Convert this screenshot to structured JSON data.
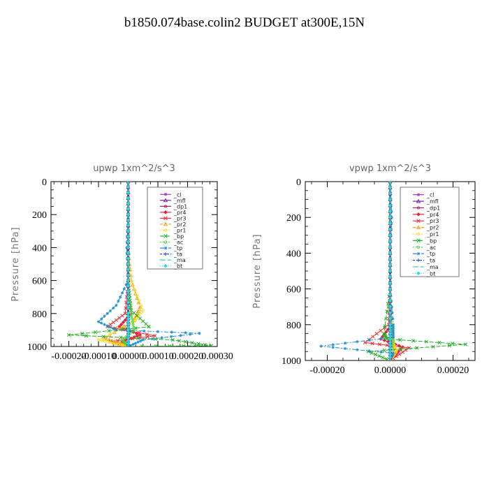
{
  "title": "b1850.074base.colin2  BUDGET at300E,15N",
  "colors": {
    "_cl": "#9a3fbf",
    "_mfl": "#7a1f9f",
    "_dp1": "#b0205a",
    "_pr4": "#e8203a",
    "_pr3": "#f03030",
    "_pr2": "#f0a020",
    "_pr1": "#f5e020",
    "_bp": "#20b020",
    "_ac": "#40e040",
    "_tp": "#2090d0",
    "_ta": "#2040e0",
    "_ma": "#20d0d0",
    "_bt": "#20e0e0"
  },
  "chart_data": [
    {
      "type": "line",
      "title": "upwp  1xm^2/s^3",
      "ylabel": "Pressure [hPa]",
      "xlabel": "",
      "xlim": [
        -0.00026,
        0.0003
      ],
      "ylim": [
        1000,
        0
      ],
      "y_inverted": true,
      "xticks": [
        "-0.00020",
        "-0.00010",
        "0.00000",
        "0.00010",
        "0.00020",
        "0.00030"
      ],
      "xtick_values": [
        -0.0002,
        -0.0001,
        0,
        0.0001,
        0.0002,
        0.0003
      ],
      "yticks": [
        0,
        200,
        400,
        600,
        800,
        1000
      ],
      "legend": [
        "_cl",
        "_mfl",
        "_dp1",
        "_pr4",
        "_pr3",
        "_pr2",
        "_pr1",
        "_bp",
        "_ac",
        "_tp",
        "_ta",
        "_ma",
        "_bt"
      ],
      "legend_position": "top-right",
      "series": [
        {
          "name": "_cl",
          "x": [
            0,
            0,
            0,
            0,
            0,
            0,
            0
          ],
          "y": [
            0,
            200,
            400,
            600,
            800,
            900,
            1000
          ]
        },
        {
          "name": "_mfl",
          "x": [
            0,
            0,
            0,
            0,
            0,
            0,
            0
          ],
          "y": [
            0,
            200,
            400,
            600,
            800,
            900,
            1000
          ]
        },
        {
          "name": "_dp1",
          "x": [
            0,
            0,
            0,
            0,
            0,
            0,
            0
          ],
          "y": [
            0,
            200,
            400,
            600,
            800,
            900,
            1000
          ]
        },
        {
          "name": "_pr4",
          "x": [
            0,
            0,
            0,
            0,
            1e-05,
            -3e-05,
            4e-05,
            -2e-05,
            0
          ],
          "y": [
            0,
            200,
            400,
            600,
            800,
            880,
            930,
            970,
            1000
          ]
        },
        {
          "name": "_pr3",
          "x": [
            0,
            0,
            0,
            0,
            -1e-05,
            -7e-05,
            9e-05,
            -6e-05,
            0
          ],
          "y": [
            0,
            200,
            400,
            600,
            800,
            880,
            935,
            970,
            1000
          ]
        },
        {
          "name": "_pr2",
          "x": [
            0,
            0,
            0,
            1e-05,
            4e-05,
            2e-05,
            -8e-05,
            -3e-05,
            0
          ],
          "y": [
            0,
            200,
            400,
            600,
            760,
            840,
            950,
            980,
            1000
          ]
        },
        {
          "name": "_pr1",
          "x": [
            0,
            0,
            0,
            1e-05,
            5e-05,
            2e-05,
            -0.0001,
            -4e-05,
            0
          ],
          "y": [
            0,
            200,
            400,
            600,
            780,
            850,
            960,
            985,
            1000
          ]
        },
        {
          "name": "_bp",
          "x": [
            0,
            0,
            0,
            0,
            1e-05,
            7e-05,
            -0.0002,
            0.00015,
            0.00028,
            0
          ],
          "y": [
            0,
            200,
            400,
            600,
            780,
            880,
            930,
            960,
            995,
            1000
          ]
        },
        {
          "name": "_ac",
          "x": [
            0,
            0,
            0,
            0,
            1e-05,
            2e-05,
            -2e-05,
            0
          ],
          "y": [
            0,
            200,
            400,
            600,
            800,
            900,
            960,
            1000
          ]
        },
        {
          "name": "_tp",
          "x": [
            0,
            0,
            -5e-06,
            0,
            -4e-05,
            -0.0001,
            -4e-05,
            0.00024,
            5e-05,
            0
          ],
          "y": [
            0,
            200,
            400,
            600,
            750,
            850,
            900,
            920,
            960,
            1000
          ]
        },
        {
          "name": "_ta",
          "x": [
            0,
            0,
            0,
            0,
            0,
            0,
            0
          ],
          "y": [
            0,
            200,
            400,
            600,
            800,
            900,
            1000
          ]
        },
        {
          "name": "_ma",
          "x": [
            0,
            0,
            0,
            0,
            0,
            0,
            0
          ],
          "y": [
            0,
            200,
            400,
            600,
            800,
            900,
            1000
          ]
        },
        {
          "name": "_bt",
          "x": [
            0,
            0,
            0,
            0,
            0,
            0,
            0
          ],
          "y": [
            0,
            200,
            400,
            600,
            800,
            900,
            1000
          ]
        }
      ]
    },
    {
      "type": "line",
      "title": "vpwp  1xm^2/s^3",
      "ylabel": "Pressure [hPa]",
      "xlabel": "",
      "xlim": [
        -0.00027,
        0.00027
      ],
      "ylim": [
        1000,
        0
      ],
      "y_inverted": true,
      "xticks": [
        "-0.00020",
        "0.00000",
        "0.00020"
      ],
      "xtick_values": [
        -0.0002,
        0,
        0.0002
      ],
      "yticks": [
        0,
        200,
        400,
        600,
        800,
        1000
      ],
      "legend": [
        "_cl",
        "_mfl",
        "_dp1",
        "_pr4",
        "_pr3",
        "_pr2",
        "_pr1",
        "_bp",
        "_ac",
        "_tp",
        "_ta",
        "_ma",
        "_bt"
      ],
      "legend_position": "top-right",
      "series": [
        {
          "name": "_cl",
          "x": [
            0,
            0,
            0,
            0,
            0,
            0,
            0
          ],
          "y": [
            0,
            200,
            400,
            600,
            800,
            900,
            1000
          ]
        },
        {
          "name": "_mfl",
          "x": [
            0,
            0,
            0,
            0,
            0,
            0,
            0
          ],
          "y": [
            0,
            200,
            400,
            600,
            800,
            900,
            1000
          ]
        },
        {
          "name": "_dp1",
          "x": [
            0,
            0,
            0,
            0,
            0,
            0,
            0
          ],
          "y": [
            0,
            200,
            400,
            600,
            800,
            900,
            1000
          ]
        },
        {
          "name": "_pr4",
          "x": [
            0,
            0,
            0,
            0,
            5e-06,
            -3e-05,
            4e-05,
            0
          ],
          "y": [
            0,
            200,
            400,
            600,
            800,
            880,
            925,
            1000
          ]
        },
        {
          "name": "_pr3",
          "x": [
            0,
            0,
            0,
            0,
            -5e-06,
            -8e-05,
            6e-05,
            0
          ],
          "y": [
            0,
            200,
            400,
            600,
            800,
            900,
            930,
            1000
          ]
        },
        {
          "name": "_pr2",
          "x": [
            0,
            0,
            0,
            0,
            5e-06,
            1e-05,
            1.5e-05,
            0
          ],
          "y": [
            0,
            200,
            400,
            600,
            800,
            900,
            940,
            1000
          ]
        },
        {
          "name": "_pr1",
          "x": [
            0,
            0,
            0,
            0,
            5e-06,
            1e-05,
            2e-05,
            0
          ],
          "y": [
            0,
            200,
            400,
            600,
            800,
            900,
            950,
            1000
          ]
        },
        {
          "name": "_bp",
          "x": [
            0,
            0,
            0,
            0,
            -2e-05,
            -1e-05,
            0.00024,
            -7e-05,
            0
          ],
          "y": [
            0,
            200,
            400,
            600,
            850,
            880,
            910,
            950,
            1000
          ]
        },
        {
          "name": "_ac",
          "x": [
            0,
            0,
            0,
            0,
            5e-06,
            1e-05,
            0
          ],
          "y": [
            0,
            200,
            400,
            600,
            800,
            900,
            1000
          ]
        },
        {
          "name": "_tp",
          "x": [
            0,
            5e-06,
            0,
            0,
            1e-05,
            1e-05,
            -0.00022,
            1e-05,
            0
          ],
          "y": [
            0,
            200,
            400,
            600,
            800,
            870,
            920,
            960,
            1000
          ]
        },
        {
          "name": "_ta",
          "x": [
            0,
            0,
            0,
            0,
            0,
            0,
            0
          ],
          "y": [
            0,
            200,
            400,
            600,
            800,
            900,
            1000
          ]
        },
        {
          "name": "_ma",
          "x": [
            0,
            0,
            0,
            0,
            0,
            0,
            0
          ],
          "y": [
            0,
            200,
            400,
            600,
            800,
            900,
            1000
          ]
        },
        {
          "name": "_bt",
          "x": [
            0,
            0,
            0,
            0,
            0,
            0,
            0
          ],
          "y": [
            0,
            200,
            400,
            600,
            800,
            900,
            1000
          ]
        }
      ]
    }
  ]
}
